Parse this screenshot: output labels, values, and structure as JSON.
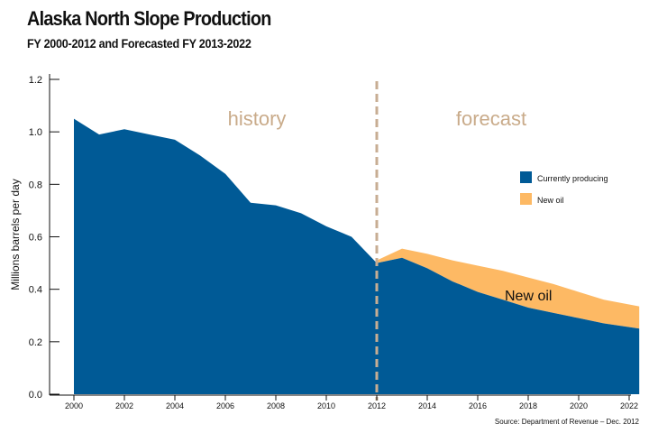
{
  "title": "Alaska North Slope Production",
  "subtitle": "FY 2000-2012 and Forecasted FY 2013-2022",
  "source": "Source: Department of Revenue – Dec. 2012",
  "colors": {
    "current": "#005a96",
    "new_oil": "#fdb964",
    "divider": "#c7ad93",
    "period_text": "#c9ab8a"
  },
  "chart_data": {
    "type": "area",
    "ylabel": "Millions barrels per day",
    "xlabel": "",
    "ylim": [
      0,
      1.2
    ],
    "xlim": [
      2000,
      2022.5
    ],
    "yticks": [
      "0.0",
      "0.2",
      "0.4",
      "0.6",
      "0.8",
      "1.0",
      "1.2"
    ],
    "xticks": [
      "2000",
      "2002",
      "2004",
      "2006",
      "2008",
      "2010",
      "2012",
      "2014",
      "2016",
      "2018",
      "2020",
      "2022"
    ],
    "divider_x": 2012,
    "period_labels": [
      "history",
      "forecast"
    ],
    "legend_position": "right",
    "annotation": "New oil",
    "grid": false,
    "stacked": true,
    "series": [
      {
        "name": "Currently producing",
        "x": [
          2000,
          2001,
          2002,
          2003,
          2004,
          2005,
          2006,
          2007,
          2008,
          2009,
          2010,
          2011,
          2012,
          2013,
          2014,
          2015,
          2016,
          2017,
          2018,
          2019,
          2020,
          2021,
          2022.4
        ],
        "values": [
          1.05,
          0.99,
          1.01,
          0.99,
          0.97,
          0.91,
          0.84,
          0.73,
          0.72,
          0.69,
          0.64,
          0.6,
          0.5,
          0.52,
          0.48,
          0.43,
          0.39,
          0.36,
          0.33,
          0.31,
          0.29,
          0.27,
          0.25
        ]
      },
      {
        "name": "New oil",
        "x": [
          2012,
          2013,
          2014,
          2015,
          2016,
          2017,
          2018,
          2019,
          2020,
          2021,
          2022.4
        ],
        "values": [
          0.01,
          0.035,
          0.055,
          0.08,
          0.1,
          0.11,
          0.115,
          0.11,
          0.1,
          0.09,
          0.085
        ]
      }
    ]
  }
}
